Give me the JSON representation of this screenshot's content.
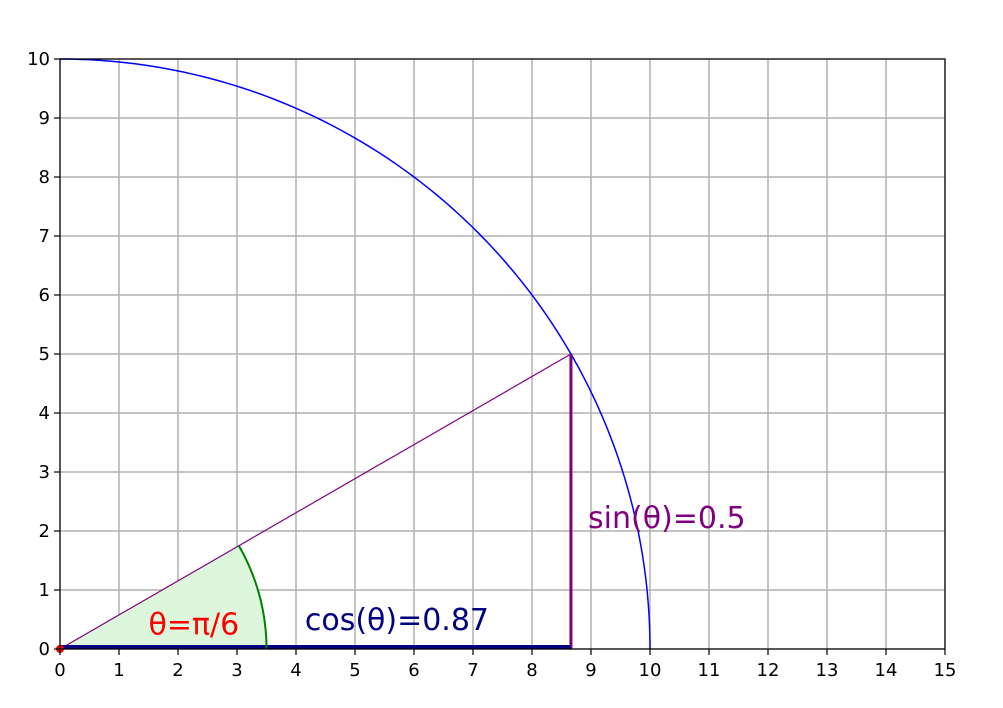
{
  "chart_data": {
    "type": "line",
    "xlim": [
      0,
      15
    ],
    "ylim": [
      0,
      10
    ],
    "x_ticks": [
      "0",
      "1",
      "2",
      "3",
      "4",
      "5",
      "6",
      "7",
      "8",
      "9",
      "10",
      "11",
      "12",
      "13",
      "14",
      "15"
    ],
    "y_ticks": [
      "0",
      "1",
      "2",
      "3",
      "4",
      "5",
      "6",
      "7",
      "8",
      "9",
      "10"
    ],
    "grid": true,
    "radius": 10,
    "theta": 0.5235987756,
    "point": [
      8.66,
      5.0
    ],
    "angle_arc_radius": 3.5,
    "annotations": {
      "theta_label": "θ=π/6",
      "cos_label": "cos(θ)=0.87",
      "sin_label": "sin(θ)=0.5"
    },
    "annotation_positions": {
      "theta_label": [
        1.5,
        0.25
      ],
      "cos_label": [
        4.15,
        0.32
      ],
      "sin_label": [
        8.95,
        2.05
      ]
    },
    "colors": {
      "circle": "#0000ff",
      "radius_line": "#800080",
      "sin_line": "#800080",
      "cos_line": "#000080",
      "angle_arc": "#008000",
      "angle_fill": "#dcf7dc",
      "origin_marker": "#ff0000",
      "grid": "#b0b0b0",
      "theta_text": "#ff0000",
      "cos_text": "#000080",
      "sin_text": "#800080"
    }
  }
}
